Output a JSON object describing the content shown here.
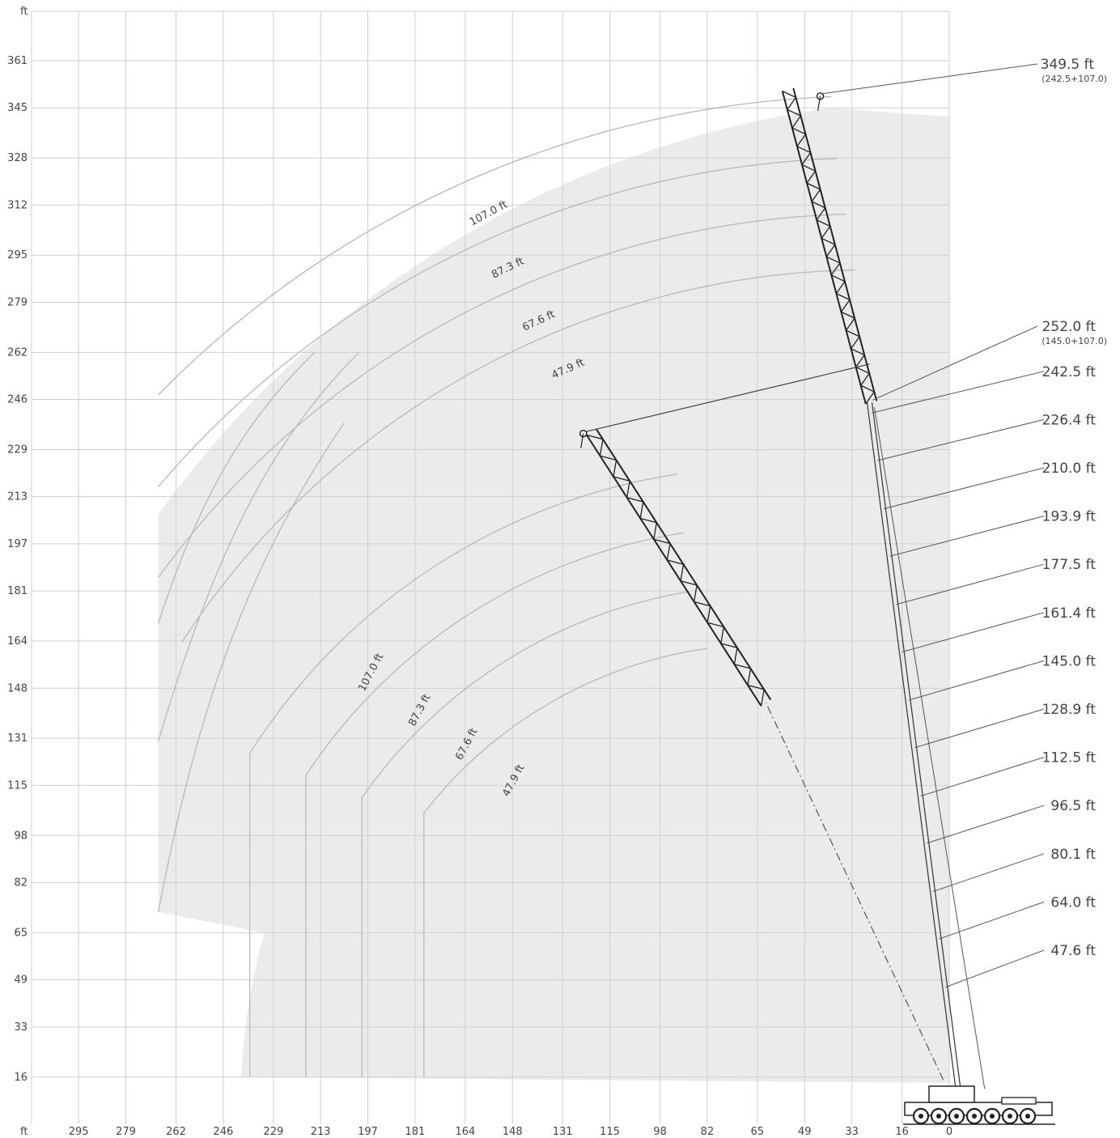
{
  "chart_data": {
    "type": "line",
    "x_unit_label": "ft",
    "y_unit_label": "ft",
    "x_ticks": [
      295,
      279,
      262,
      246,
      229,
      213,
      197,
      181,
      164,
      148,
      131,
      115,
      98,
      82,
      65,
      49,
      33,
      16,
      0
    ],
    "y_ticks": [
      16,
      33,
      49,
      65,
      82,
      98,
      115,
      131,
      148,
      164,
      181,
      197,
      213,
      229,
      246,
      262,
      279,
      295,
      312,
      328,
      345,
      361
    ],
    "xlim": [
      -25,
      327
    ],
    "ylim": [
      0,
      377
    ],
    "grid": true,
    "main_boom_lengths": [
      {
        "label": "47.6 ft",
        "value": 47.6
      },
      {
        "label": "64.0 ft",
        "value": 64.0
      },
      {
        "label": "80.1 ft",
        "value": 80.1
      },
      {
        "label": "96.5 ft",
        "value": 96.5
      },
      {
        "label": "112.5 ft",
        "value": 112.5
      },
      {
        "label": "128.9 ft",
        "value": 128.9
      },
      {
        "label": "145.0 ft",
        "value": 145.0
      },
      {
        "label": "161.4 ft",
        "value": 161.4
      },
      {
        "label": "177.5 ft",
        "value": 177.5
      },
      {
        "label": "193.9 ft",
        "value": 193.9
      },
      {
        "label": "210.0 ft",
        "value": 210.0
      },
      {
        "label": "226.4 ft",
        "value": 226.4
      },
      {
        "label": "242.5 ft",
        "value": 242.5
      }
    ],
    "max_heights": [
      {
        "label": "349.5 ft",
        "sub": "(242.5+107.0)",
        "value": 349.5
      },
      {
        "label": "252.0 ft",
        "sub": "(145.0+107.0)",
        "value": 252.0
      }
    ],
    "jib_arcs_upper": [
      {
        "label": "107.0 ft",
        "radius": 107.0
      },
      {
        "label": "87.3 ft",
        "radius": 87.3
      },
      {
        "label": "67.6 ft",
        "radius": 67.6
      },
      {
        "label": "47.9 ft",
        "radius": 47.9
      }
    ],
    "jib_arcs_lower": [
      {
        "label": "107.0 ft",
        "radius": 107.0
      },
      {
        "label": "87.3 ft",
        "radius": 87.3
      },
      {
        "label": "67.6 ft",
        "radius": 67.6
      },
      {
        "label": "47.9 ft",
        "radius": 47.9
      }
    ],
    "boom_upper": {
      "pivot_x": 0,
      "pivot_y": 12,
      "head_x": 27,
      "head_y": 245,
      "jib_tip_x": 47,
      "jib_tip_y": 349.5
    },
    "boom_lower": {
      "pivot_x": 2,
      "pivot_y": 15,
      "head_x": 61,
      "head_y": 143,
      "jib_tip_x": 124,
      "jib_tip_y": 235
    }
  }
}
